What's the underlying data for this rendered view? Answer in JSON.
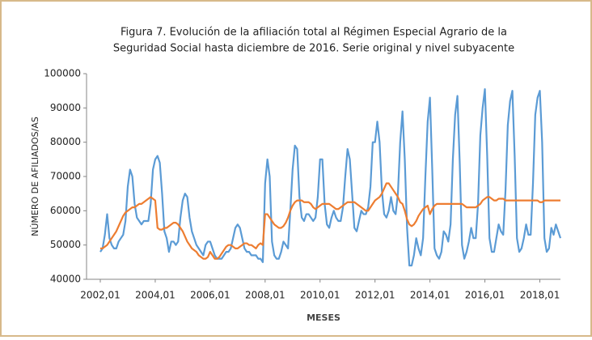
{
  "chart_data": {
    "type": "line",
    "title": [
      "Figura 7. Evolución de la afiliación total al Régimen Especial Agrario de la",
      "Seguridad Social hasta diciembre de 2016. Serie original y nivel subyacente"
    ],
    "x_label": "MESES",
    "y_label": "NÚMERO DE AFILIADOS/AS",
    "categories": [
      "2002,01",
      null,
      null,
      null,
      null,
      null,
      null,
      null,
      null,
      null,
      null,
      null,
      null,
      null,
      null,
      null,
      null,
      null,
      null,
      null,
      null,
      null,
      null,
      null,
      "2004,01",
      null,
      null,
      null,
      null,
      null,
      null,
      null,
      null,
      null,
      null,
      null,
      null,
      null,
      null,
      null,
      null,
      null,
      null,
      null,
      null,
      null,
      null,
      null,
      "2006,01",
      null,
      null,
      null,
      null,
      null,
      null,
      null,
      null,
      null,
      null,
      null,
      null,
      null,
      null,
      null,
      null,
      null,
      null,
      null,
      null,
      null,
      null,
      null,
      "2008,01",
      null,
      null,
      null,
      null,
      null,
      null,
      null,
      null,
      null,
      null,
      null,
      null,
      null,
      null,
      null,
      null,
      null,
      null,
      null,
      null,
      null,
      null,
      null,
      "2010,01",
      null,
      null,
      null,
      null,
      null,
      null,
      null,
      null,
      null,
      null,
      null,
      null,
      null,
      null,
      null,
      null,
      null,
      null,
      null,
      null,
      null,
      null,
      null,
      "2012,01",
      null,
      null,
      null,
      null,
      null,
      null,
      null,
      null,
      null,
      null,
      null,
      null,
      null,
      null,
      null,
      null,
      null,
      null,
      null,
      null,
      null,
      null,
      null,
      "2014,01",
      null,
      null,
      null,
      null,
      null,
      null,
      null,
      null,
      null,
      null,
      null,
      null,
      null,
      null,
      null,
      null,
      null,
      null,
      null,
      null,
      null,
      null,
      null,
      "2016,01",
      null,
      null,
      null,
      null,
      null,
      null,
      null,
      null,
      null,
      null,
      null,
      null,
      null,
      null,
      null,
      null,
      null,
      null,
      null,
      null,
      null,
      null,
      null,
      "2018,01",
      null,
      null,
      null,
      null,
      null,
      null,
      null,
      null,
      null
    ],
    "series": [
      {
        "color": "#5b9bd5",
        "values": [
          48000,
          49000,
          53000,
          59000,
          52000,
          50000,
          49000,
          49000,
          51000,
          52000,
          53000,
          57000,
          67000,
          72000,
          70000,
          62000,
          58000,
          57000,
          56000,
          57000,
          57000,
          57000,
          62000,
          72000,
          75000,
          76000,
          74000,
          65000,
          54000,
          52000,
          48000,
          51000,
          51000,
          50000,
          51000,
          58000,
          63000,
          65000,
          64000,
          58000,
          54000,
          52000,
          50000,
          49000,
          48000,
          47000,
          50000,
          51000,
          51000,
          49000,
          47000,
          46000,
          46000,
          46000,
          47000,
          48000,
          48000,
          49000,
          52000,
          55000,
          56000,
          55000,
          52000,
          49000,
          48000,
          48000,
          47000,
          47000,
          47000,
          46000,
          46000,
          45000,
          68000,
          75000,
          70000,
          51000,
          47000,
          46000,
          46000,
          48000,
          51000,
          50000,
          49000,
          60000,
          72000,
          79000,
          78000,
          64000,
          58000,
          57000,
          59000,
          59000,
          58000,
          57000,
          58000,
          64000,
          75000,
          75000,
          62000,
          56000,
          55000,
          58000,
          60000,
          58000,
          57000,
          57000,
          61000,
          70000,
          78000,
          75000,
          65000,
          55000,
          54000,
          57000,
          60000,
          59000,
          59000,
          61000,
          67000,
          80000,
          80000,
          86000,
          80000,
          66000,
          59000,
          58000,
          60000,
          64000,
          60000,
          59000,
          65000,
          80000,
          89000,
          75000,
          55000,
          44000,
          44000,
          47000,
          52000,
          49000,
          47000,
          52000,
          70000,
          86000,
          93000,
          72000,
          49000,
          47000,
          46000,
          48000,
          54000,
          53000,
          51000,
          56000,
          75000,
          88000,
          93500,
          74000,
          50000,
          46000,
          48000,
          51000,
          55000,
          52000,
          52000,
          62000,
          82000,
          90000,
          95500,
          76000,
          52000,
          48000,
          48000,
          52000,
          56000,
          54000,
          53000,
          66000,
          85000,
          92000,
          95000,
          76000,
          52000,
          48000,
          49000,
          52000,
          56000,
          53000,
          53000,
          68000,
          88000,
          93000,
          95000,
          80000,
          52000,
          48000,
          49000,
          55000,
          53000,
          56000,
          54000,
          52000
        ]
      },
      {
        "color": "#ed7d31",
        "values": [
          49000,
          49000,
          49500,
          50000,
          51000,
          52000,
          53000,
          54000,
          55500,
          57000,
          58500,
          59500,
          60000,
          60500,
          61000,
          61000,
          61500,
          62000,
          62000,
          62500,
          63000,
          63500,
          64000,
          63500,
          63000,
          55000,
          54500,
          54500,
          55000,
          55000,
          55500,
          56000,
          56500,
          56500,
          56000,
          55000,
          54000,
          52500,
          51000,
          50000,
          49000,
          48500,
          48000,
          47000,
          46500,
          46000,
          46000,
          46500,
          48000,
          47000,
          46000,
          46000,
          46500,
          47500,
          48500,
          49500,
          50000,
          50000,
          49500,
          49000,
          49000,
          49500,
          50000,
          50500,
          50500,
          50000,
          50000,
          49500,
          49000,
          50000,
          50500,
          50000,
          59000,
          59000,
          58000,
          57000,
          56000,
          55500,
          55000,
          55000,
          55500,
          56500,
          58000,
          60000,
          61500,
          62500,
          63000,
          63000,
          63000,
          62500,
          62500,
          62500,
          62000,
          61000,
          60500,
          61000,
          61500,
          62000,
          62000,
          62000,
          62000,
          61500,
          61000,
          60500,
          60500,
          61000,
          61500,
          62000,
          62500,
          62500,
          62500,
          62500,
          62000,
          61500,
          61000,
          60500,
          60000,
          60000,
          61000,
          62000,
          63000,
          63500,
          64000,
          65000,
          66500,
          68000,
          68000,
          67000,
          66000,
          65000,
          64000,
          62500,
          62000,
          60000,
          57500,
          56000,
          55500,
          56000,
          57000,
          58500,
          59500,
          60500,
          61000,
          61500,
          59000,
          60500,
          61500,
          62000,
          62000,
          62000,
          62000,
          62000,
          62000,
          62000,
          62000,
          62000,
          62000,
          62000,
          62000,
          61500,
          61000,
          61000,
          61000,
          61000,
          61000,
          61500,
          62000,
          63000,
          63500,
          64000,
          64000,
          63500,
          63000,
          63000,
          63500,
          63500,
          63500,
          63000,
          63000,
          63000,
          63000,
          63000,
          63000,
          63000,
          63000,
          63000,
          63000,
          63000,
          63000,
          63000,
          63000,
          63000,
          62500,
          62500,
          63000,
          63000,
          63000,
          63000,
          63000,
          63000,
          63000,
          63000
        ]
      }
    ],
    "ylim": [
      40000,
      100000
    ],
    "yticks": [
      40000,
      50000,
      60000,
      70000,
      80000,
      90000,
      100000
    ]
  }
}
